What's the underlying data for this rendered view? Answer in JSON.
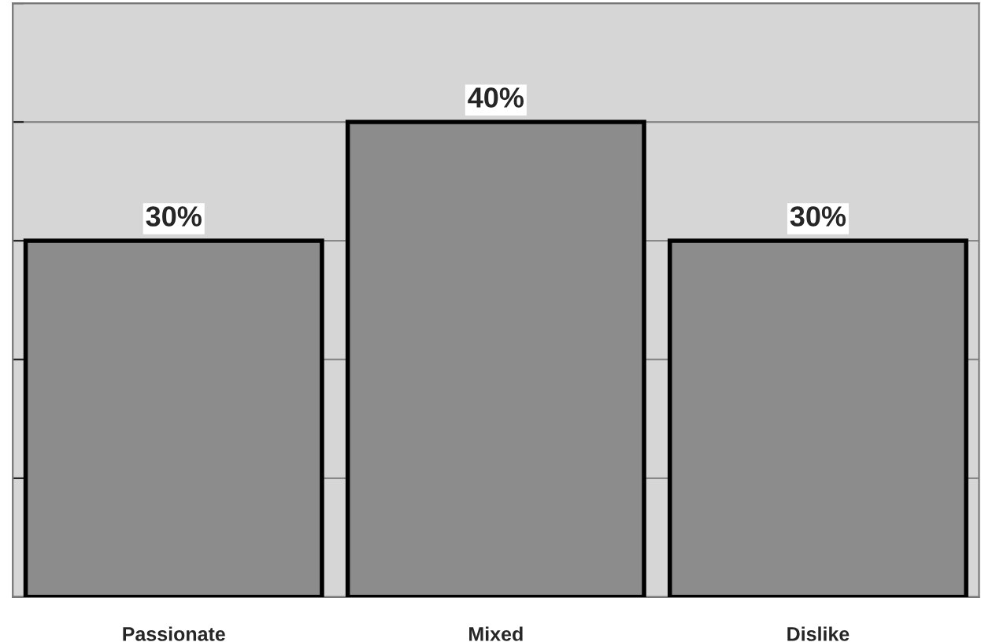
{
  "chart_data": {
    "type": "bar",
    "categories": [
      "Passionate",
      "Mixed",
      "Dislike"
    ],
    "values": [
      30,
      40,
      30
    ],
    "value_labels": [
      "30%",
      "40%",
      "30%"
    ],
    "color": "#8c8c8c",
    "ylim": [
      0,
      50
    ],
    "yticks": [
      {
        "value": 0,
        "label": null
      },
      {
        "value": 10,
        "label": null
      },
      {
        "value": 20,
        "label": null
      },
      {
        "value": 30,
        "label": null
      },
      {
        "value": 40,
        "label": null
      },
      {
        "value": 50,
        "label": null
      }
    ],
    "grid": "y",
    "tick_labels": "x"
  }
}
